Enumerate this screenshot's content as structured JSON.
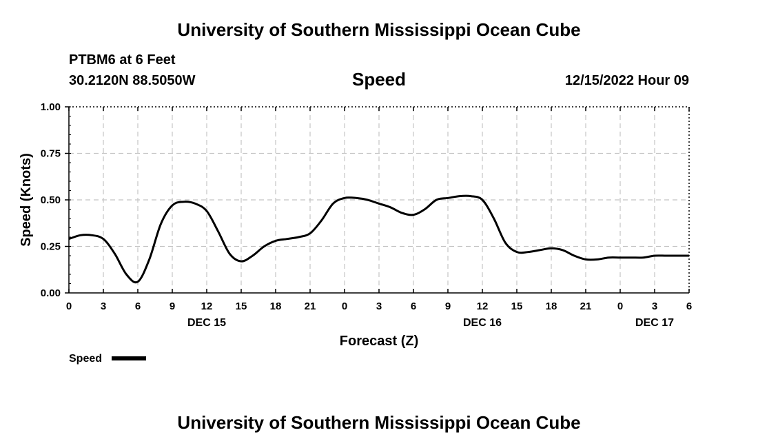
{
  "header": {
    "institution": "University of Southern Mississippi Ocean Cube",
    "station": "PTBM6 at 6 Feet",
    "coordinates": "30.2120N  88.5050W",
    "datetime": "12/15/2022 Hour 09"
  },
  "footer": {
    "institution": "University of Southern Mississippi Ocean Cube"
  },
  "chart_data": {
    "type": "line",
    "title": "Speed",
    "xlabel": "Forecast (Z)",
    "ylabel": "Speed (Knots)",
    "ylim": [
      0,
      1
    ],
    "xlim": [
      0,
      54
    ],
    "grid": true,
    "legend": {
      "position": "bottom-left",
      "entries": [
        "Speed"
      ]
    },
    "x_ticks": [
      0,
      3,
      6,
      9,
      12,
      15,
      18,
      21,
      24,
      27,
      30,
      33,
      36,
      39,
      42,
      45,
      48,
      51,
      54
    ],
    "x_tick_labels": [
      "0",
      "3",
      "6",
      "9",
      "12",
      "15",
      "18",
      "21",
      "0",
      "3",
      "6",
      "9",
      "12",
      "15",
      "18",
      "21",
      "0",
      "3",
      "6"
    ],
    "date_labels": [
      {
        "label": "DEC 15",
        "x": 12
      },
      {
        "label": "DEC 16",
        "x": 36
      },
      {
        "label": "DEC 17",
        "x": 51
      }
    ],
    "y_ticks": [
      0,
      0.25,
      0.5,
      0.75,
      1.0
    ],
    "y_tick_labels": [
      "0.00",
      "0.25",
      "0.50",
      "0.75",
      "1.00"
    ],
    "series": [
      {
        "name": "Speed",
        "color": "#000000",
        "x": [
          0,
          1,
          2,
          3,
          4,
          5,
          6,
          7,
          8,
          9,
          10,
          11,
          12,
          13,
          14,
          15,
          16,
          17,
          18,
          19,
          20,
          21,
          22,
          23,
          24,
          25,
          26,
          27,
          28,
          29,
          30,
          31,
          32,
          33,
          34,
          35,
          36,
          37,
          38,
          39,
          40,
          41,
          42,
          43,
          44,
          45,
          46,
          47,
          48,
          49,
          50,
          51,
          52,
          53,
          54
        ],
        "values": [
          0.29,
          0.31,
          0.31,
          0.29,
          0.21,
          0.1,
          0.06,
          0.18,
          0.37,
          0.47,
          0.49,
          0.48,
          0.44,
          0.33,
          0.21,
          0.17,
          0.2,
          0.25,
          0.28,
          0.29,
          0.3,
          0.32,
          0.39,
          0.48,
          0.51,
          0.51,
          0.5,
          0.48,
          0.46,
          0.43,
          0.42,
          0.45,
          0.5,
          0.51,
          0.52,
          0.52,
          0.5,
          0.4,
          0.27,
          0.22,
          0.22,
          0.23,
          0.24,
          0.23,
          0.2,
          0.18,
          0.18,
          0.19,
          0.19,
          0.19,
          0.19,
          0.2,
          0.2,
          0.2,
          0.2
        ]
      }
    ]
  }
}
